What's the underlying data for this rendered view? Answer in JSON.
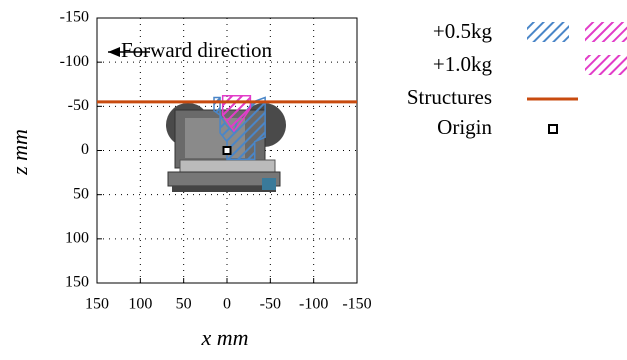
{
  "chart_data": {
    "type": "line",
    "annotation": "Forward direction",
    "xlabel": "x mm",
    "ylabel": "z mm",
    "xlim": [
      150,
      -150
    ],
    "ylim": [
      -150,
      150
    ],
    "xticks": [
      150,
      100,
      50,
      0,
      -50,
      -100,
      -150
    ],
    "yticks": [
      -150,
      -100,
      -50,
      0,
      50,
      100,
      150
    ],
    "grid": true,
    "legend": "right",
    "series": [
      {
        "name": "+0.5kg",
        "color": "#4a86c8",
        "style": "area",
        "x": [
          15,
          15,
          8,
          0,
          -8,
          -12,
          -20,
          -30,
          -44,
          -44,
          -32,
          -32,
          0,
          0,
          8,
          8
        ],
        "values": [
          -60,
          -45,
          -40,
          -28,
          -20,
          -35,
          -42,
          -55,
          -60,
          -15,
          -10,
          10,
          10,
          -10,
          -20,
          -60
        ]
      },
      {
        "name": "+1.0kg",
        "color": "#e23cc8",
        "style": "area",
        "x": [
          5,
          5,
          -8,
          -18,
          -27,
          -27,
          -15
        ],
        "values": [
          -62,
          -40,
          -22,
          -35,
          -48,
          -62,
          -62
        ]
      },
      {
        "name": "Structures",
        "color": "#c84b0f",
        "style": "line",
        "x": [
          150,
          -150
        ],
        "values": [
          -55,
          -55
        ]
      },
      {
        "name": "Origin",
        "color": "#000000",
        "style": "point",
        "x": [
          0
        ],
        "values": [
          0
        ]
      }
    ]
  }
}
